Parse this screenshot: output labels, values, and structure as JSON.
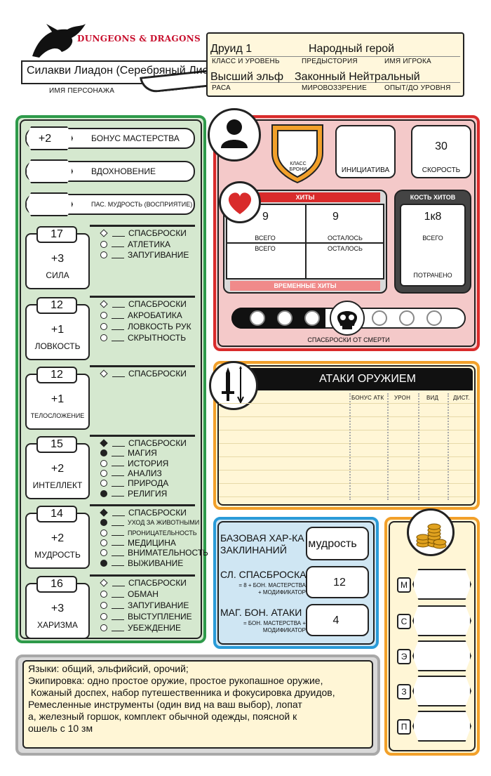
{
  "header": {
    "logo_text": "DUNGEONS & DRAGONS",
    "character_name": "Силакви Лиадон (Серебряный Лист)",
    "character_name_label": "ИМЯ ПЕРСОНАЖА",
    "class_level": "Друид 1",
    "class_level_label": "КЛАСС И УРОВЕНЬ",
    "background": "Народный герой",
    "background_label": "ПРЕДЫСТОРИЯ",
    "player_name_label": "ИМЯ ИГРОКА",
    "race": "Высший эльф",
    "race_label": "РАСА",
    "alignment": "Законный Нейтральный",
    "alignment_label": "МИРОВОЗЗРЕНИЕ",
    "xp_label": "ОПЫТ/ДО УРОВНЯ"
  },
  "left": {
    "proficiency_value": "+2",
    "proficiency_label": "БОНУС МАСТЕРСТВА",
    "inspiration_label": "ВДОХНОВЕНИЕ",
    "passive_label": "ПАС. МУДРОСТЬ (ВОСПРИЯТИЕ)",
    "abilities": [
      {
        "score": "17",
        "mod": "+3",
        "name": "СИЛА",
        "skills": [
          [
            "diamond-empty",
            "СПАСБРОСКИ"
          ],
          [
            "circle-empty",
            "АТЛЕТИКА"
          ],
          [
            "circle-empty",
            "ЗАПУГИВАНИЕ"
          ]
        ]
      },
      {
        "score": "12",
        "mod": "+1",
        "name": "ЛОВКОСТЬ",
        "skills": [
          [
            "diamond-empty",
            "СПАСБРОСКИ"
          ],
          [
            "circle-empty",
            "АКРОБАТИКА"
          ],
          [
            "circle-empty",
            "ЛОВКОСТЬ РУК"
          ],
          [
            "circle-empty",
            "СКРЫТНОСТЬ"
          ]
        ]
      },
      {
        "score": "12",
        "mod": "+1",
        "name": "ТЕЛОСЛОЖЕНИЕ",
        "skills": [
          [
            "diamond-empty",
            "СПАСБРОСКИ"
          ]
        ]
      },
      {
        "score": "15",
        "mod": "+2",
        "name": "ИНТЕЛЛЕКТ",
        "skills": [
          [
            "diamond-filled",
            "СПАСБРОСКИ"
          ],
          [
            "circle-filled",
            "МАГИЯ"
          ],
          [
            "circle-empty",
            "ИСТОРИЯ"
          ],
          [
            "circle-empty",
            "АНАЛИЗ"
          ],
          [
            "circle-empty",
            "ПРИРОДА"
          ],
          [
            "circle-filled",
            "РЕЛИГИЯ"
          ]
        ]
      },
      {
        "score": "14",
        "mod": "+2",
        "name": "МУДРОСТЬ",
        "skills": [
          [
            "diamond-filled",
            "СПАСБРОСКИ"
          ],
          [
            "circle-filled",
            "УХОД ЗА ЖИВОТНЫМИ"
          ],
          [
            "circle-empty",
            "ПРОНИЦАТЕЛЬНОСТЬ"
          ],
          [
            "circle-empty",
            "МЕДИЦИНА"
          ],
          [
            "circle-empty",
            "ВНИМАТЕЛЬНОСТЬ"
          ],
          [
            "circle-filled",
            "ВЫЖИВАНИЕ"
          ]
        ]
      },
      {
        "score": "16",
        "mod": "+3",
        "name": "ХАРИЗМА",
        "skills": [
          [
            "diamond-empty",
            "СПАСБРОСКИ"
          ],
          [
            "circle-empty",
            "ОБМАН"
          ],
          [
            "circle-empty",
            "ЗАПУГИВАНИЕ"
          ],
          [
            "circle-empty",
            "ВЫСТУПЛЕНИЕ"
          ],
          [
            "circle-empty",
            "УБЕЖДЕНИЕ"
          ]
        ]
      }
    ]
  },
  "combat": {
    "ac_label": "КЛАСС БРОНИ",
    "initiative_label": "ИНИЦИАТИВА",
    "speed_value": "30",
    "speed_label": "СКОРОСТЬ",
    "hp_title": "ХИТЫ",
    "hp_total": "9",
    "hp_current": "9",
    "total_label": "ВСЕГО",
    "remaining_label": "ОСТАЛОСЬ",
    "temp_hp_label": "ВРЕМЕННЫЕ ХИТЫ",
    "hit_dice_title": "КОСТЬ ХИТОВ",
    "hit_dice_value": "1к8",
    "hit_dice_total_label": "ВСЕГО",
    "hit_dice_spent_label": "ПОТРАЧЕНО",
    "death_saves_label": "СПАСБРОСКИ ОТ СМЕРТИ"
  },
  "attacks": {
    "title": "АТАКИ ОРУЖИЕМ",
    "columns": [
      "БОНУС АТК",
      "УРОН",
      "ВИД",
      "ДИСТ."
    ]
  },
  "spellcasting": {
    "ability_label": "БАЗОВАЯ ХАР-КА ЗАКЛИНАНИЙ",
    "ability_value": "мудрость",
    "save_dc_label": "СЛ. СПАСБРОСКА",
    "save_dc_formula": "= 8 + БОН. МАСТЕРСТВА + МОДИФИКАТОР",
    "save_dc_value": "12",
    "attack_label": "МАГ. БОН. АТАКИ",
    "attack_formula": "= БОН. МАСТЕРСТВА + МОДИФИКАТОР",
    "attack_value": "4"
  },
  "coins": [
    "М",
    "С",
    "Э",
    "З",
    "П"
  ],
  "notes": {
    "lines": [
      "Языки: общий, эльфийсий, орочий;",
      "Экипировка: одно простое оружие, простое рукопашное оружие,",
      " Кожаный доспех, набор путешественника и фокусировка друидов,",
      "Ремесленные инструменты (один вид на ваш выбор), лопат",
      "а, железный горшок, комплект обычной одежды, поясной к",
      "ошель с 10 зм"
    ]
  },
  "colors": {
    "green": "#2e9a4a",
    "green_bg": "#d5e8cf",
    "red": "#d92b2b",
    "red_bg": "#f4c9c9",
    "orange": "#f2a02a",
    "paper": "#fff6d6",
    "blue": "#2a9bd8",
    "blue_bg": "#cfe6f3",
    "grey": "#a8a8a8",
    "grey_bg": "#d9d9d9"
  }
}
